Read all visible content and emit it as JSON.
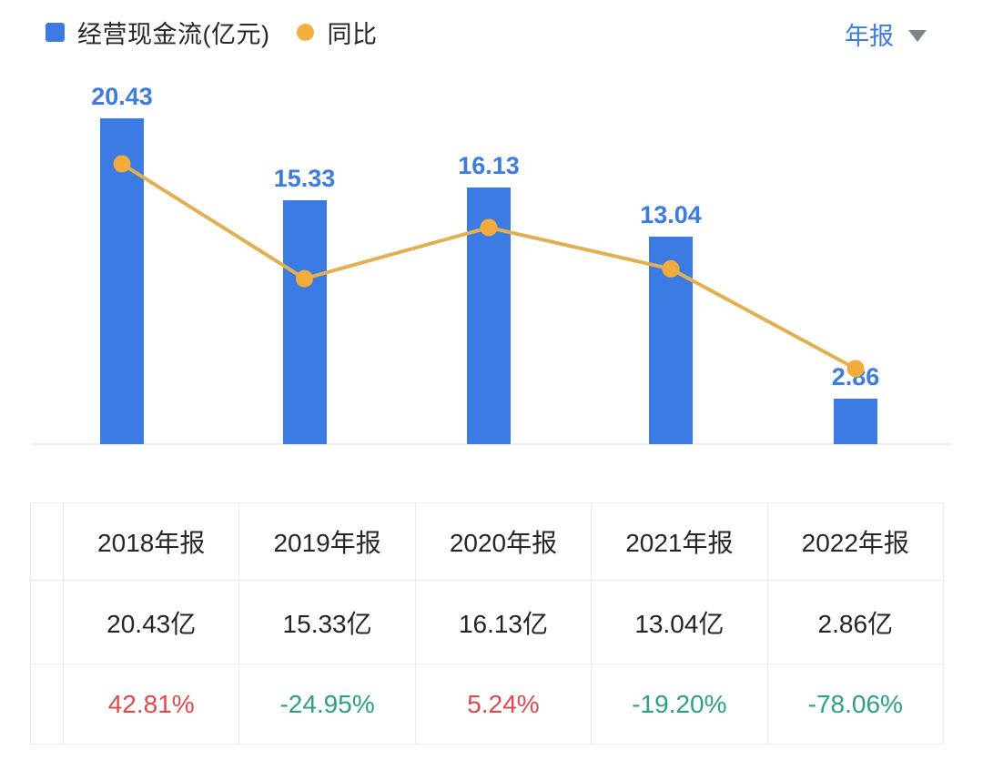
{
  "legend": {
    "items": [
      {
        "label": "经营现金流(亿元)",
        "marker": "blue-square"
      },
      {
        "label": "同比",
        "marker": "orange-circle"
      }
    ]
  },
  "period_selector": {
    "label": "年报"
  },
  "colors": {
    "bar_blue": "#3C7BE2",
    "line_orange": "#E2AF52",
    "dot_orange": "#F2AC3E",
    "positive_red": "#DA4B4E",
    "negative_green": "#2E9E85"
  },
  "chart_data": {
    "type": "bar",
    "categories": [
      "2018年报",
      "2019年报",
      "2020年报",
      "2021年报",
      "2022年报"
    ],
    "series": [
      {
        "name": "经营现金流(亿元)",
        "type": "bar",
        "unit": "亿",
        "values": [
          20.43,
          15.33,
          16.13,
          13.04,
          2.86
        ],
        "labels": [
          "20.43",
          "15.33",
          "16.13",
          "13.04",
          "2.86"
        ]
      },
      {
        "name": "同比",
        "type": "line",
        "unit": "%",
        "values": [
          42.81,
          -24.95,
          5.24,
          -19.2,
          -78.06
        ]
      }
    ],
    "title": "",
    "xlabel": "",
    "ylabel": "",
    "legend_position": "top-left",
    "grid": false,
    "baseline_axis": true
  },
  "table": {
    "headers": [
      "2018年报",
      "2019年报",
      "2020年报",
      "2021年报",
      "2022年报"
    ],
    "rows": [
      {
        "icon": "blue-square",
        "values": [
          "20.43亿",
          "15.33亿",
          "16.13亿",
          "13.04亿",
          "2.86亿"
        ],
        "value_colors": [
          "dark",
          "dark",
          "dark",
          "dark",
          "dark"
        ]
      },
      {
        "icon": "orange-circle",
        "values": [
          "42.81%",
          "-24.95%",
          "5.24%",
          "-19.20%",
          "-78.06%"
        ],
        "value_colors": [
          "red",
          "green",
          "red",
          "green",
          "green"
        ]
      }
    ]
  }
}
